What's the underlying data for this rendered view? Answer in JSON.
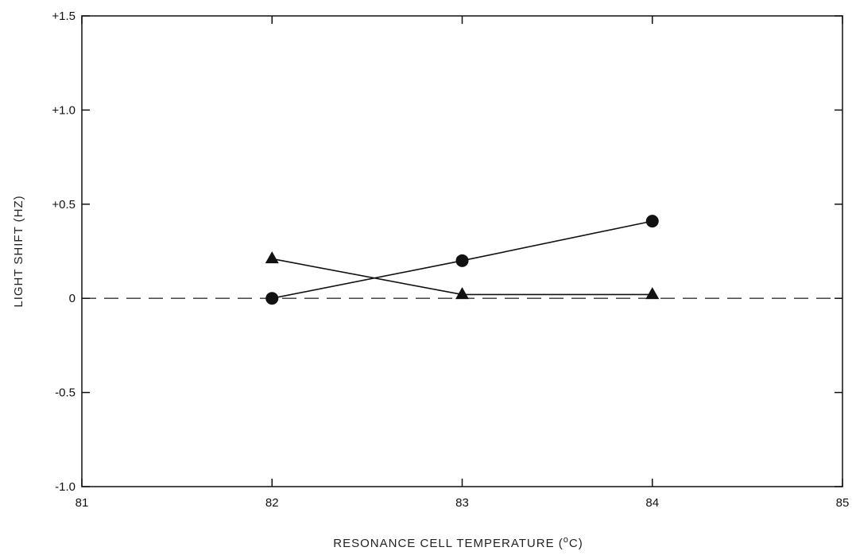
{
  "chart_data": {
    "type": "line",
    "title": "",
    "xlabel": "RESONANCE CELL TEMPERATURE (°C)",
    "xlabel_parts": {
      "before": "RESONANCE CELL TEMPERATURE (",
      "sup": "o",
      "after": "C)"
    },
    "ylabel": "LIGHT SHIFT (HZ)",
    "xlim": [
      81,
      85
    ],
    "ylim": [
      -1.0,
      1.5
    ],
    "x_ticks": [
      81,
      82,
      83,
      84,
      85
    ],
    "x_tick_labels": [
      "81",
      "82",
      "83",
      "84",
      "85"
    ],
    "y_ticks": [
      -1.0,
      -0.5,
      0,
      0.5,
      1.0,
      1.5
    ],
    "y_tick_labels": [
      "-1.0",
      "-0.5",
      "0",
      "+0.5",
      "+1.0",
      "+1.5"
    ],
    "grid": false,
    "reference_line": {
      "y": 0,
      "style": "dashed"
    },
    "series": [
      {
        "marker": "circle",
        "color": "#111111",
        "x": [
          82,
          83,
          84
        ],
        "y": [
          0.0,
          0.2,
          0.41
        ]
      },
      {
        "marker": "triangle",
        "color": "#111111",
        "x": [
          82,
          83,
          84
        ],
        "y": [
          0.21,
          0.02,
          0.02
        ]
      }
    ]
  }
}
